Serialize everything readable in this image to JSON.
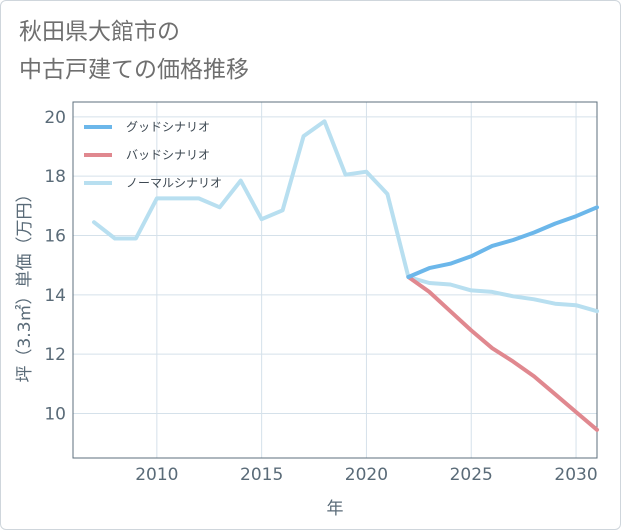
{
  "title_lines": [
    "秋田県大館市の",
    "中古戸建ての価格推移"
  ],
  "chart_data": {
    "type": "line",
    "xlabel": "年",
    "ylabel": "坪（3.3㎡）単価（万円）",
    "xlim": [
      2006,
      2031
    ],
    "ylim": [
      8.5,
      20.5
    ],
    "xticks": [
      2010,
      2015,
      2020,
      2025,
      2030
    ],
    "yticks": [
      10,
      12,
      14,
      16,
      18,
      20
    ],
    "legend_position": "top-left",
    "series": [
      {
        "name": "グッドシナリオ",
        "color": "#6cb7ea",
        "x": [
          2022,
          2023,
          2024,
          2025,
          2026,
          2027,
          2028,
          2029,
          2030,
          2031
        ],
        "values": [
          14.6,
          14.9,
          15.05,
          15.3,
          15.65,
          15.85,
          16.1,
          16.4,
          16.65,
          16.95
        ]
      },
      {
        "name": "バッドシナリオ",
        "color": "#e0888f",
        "x": [
          2022,
          2023,
          2024,
          2025,
          2026,
          2027,
          2028,
          2029,
          2030,
          2031
        ],
        "values": [
          14.6,
          14.1,
          13.45,
          12.8,
          12.2,
          11.75,
          11.25,
          10.65,
          10.05,
          9.45
        ]
      },
      {
        "name": "ノーマルシナリオ",
        "color": "#b8dff0",
        "x": [
          2007,
          2008,
          2009,
          2010,
          2011,
          2012,
          2013,
          2014,
          2015,
          2016,
          2017,
          2018,
          2019,
          2020,
          2021,
          2022,
          2023,
          2024,
          2025,
          2026,
          2027,
          2028,
          2029,
          2030,
          2031
        ],
        "values": [
          16.45,
          15.9,
          15.9,
          17.25,
          17.25,
          17.25,
          16.95,
          17.85,
          16.55,
          16.85,
          19.35,
          19.85,
          18.05,
          18.15,
          17.4,
          14.6,
          14.4,
          14.35,
          14.15,
          14.1,
          13.95,
          13.85,
          13.7,
          13.65,
          13.45
        ]
      }
    ]
  }
}
